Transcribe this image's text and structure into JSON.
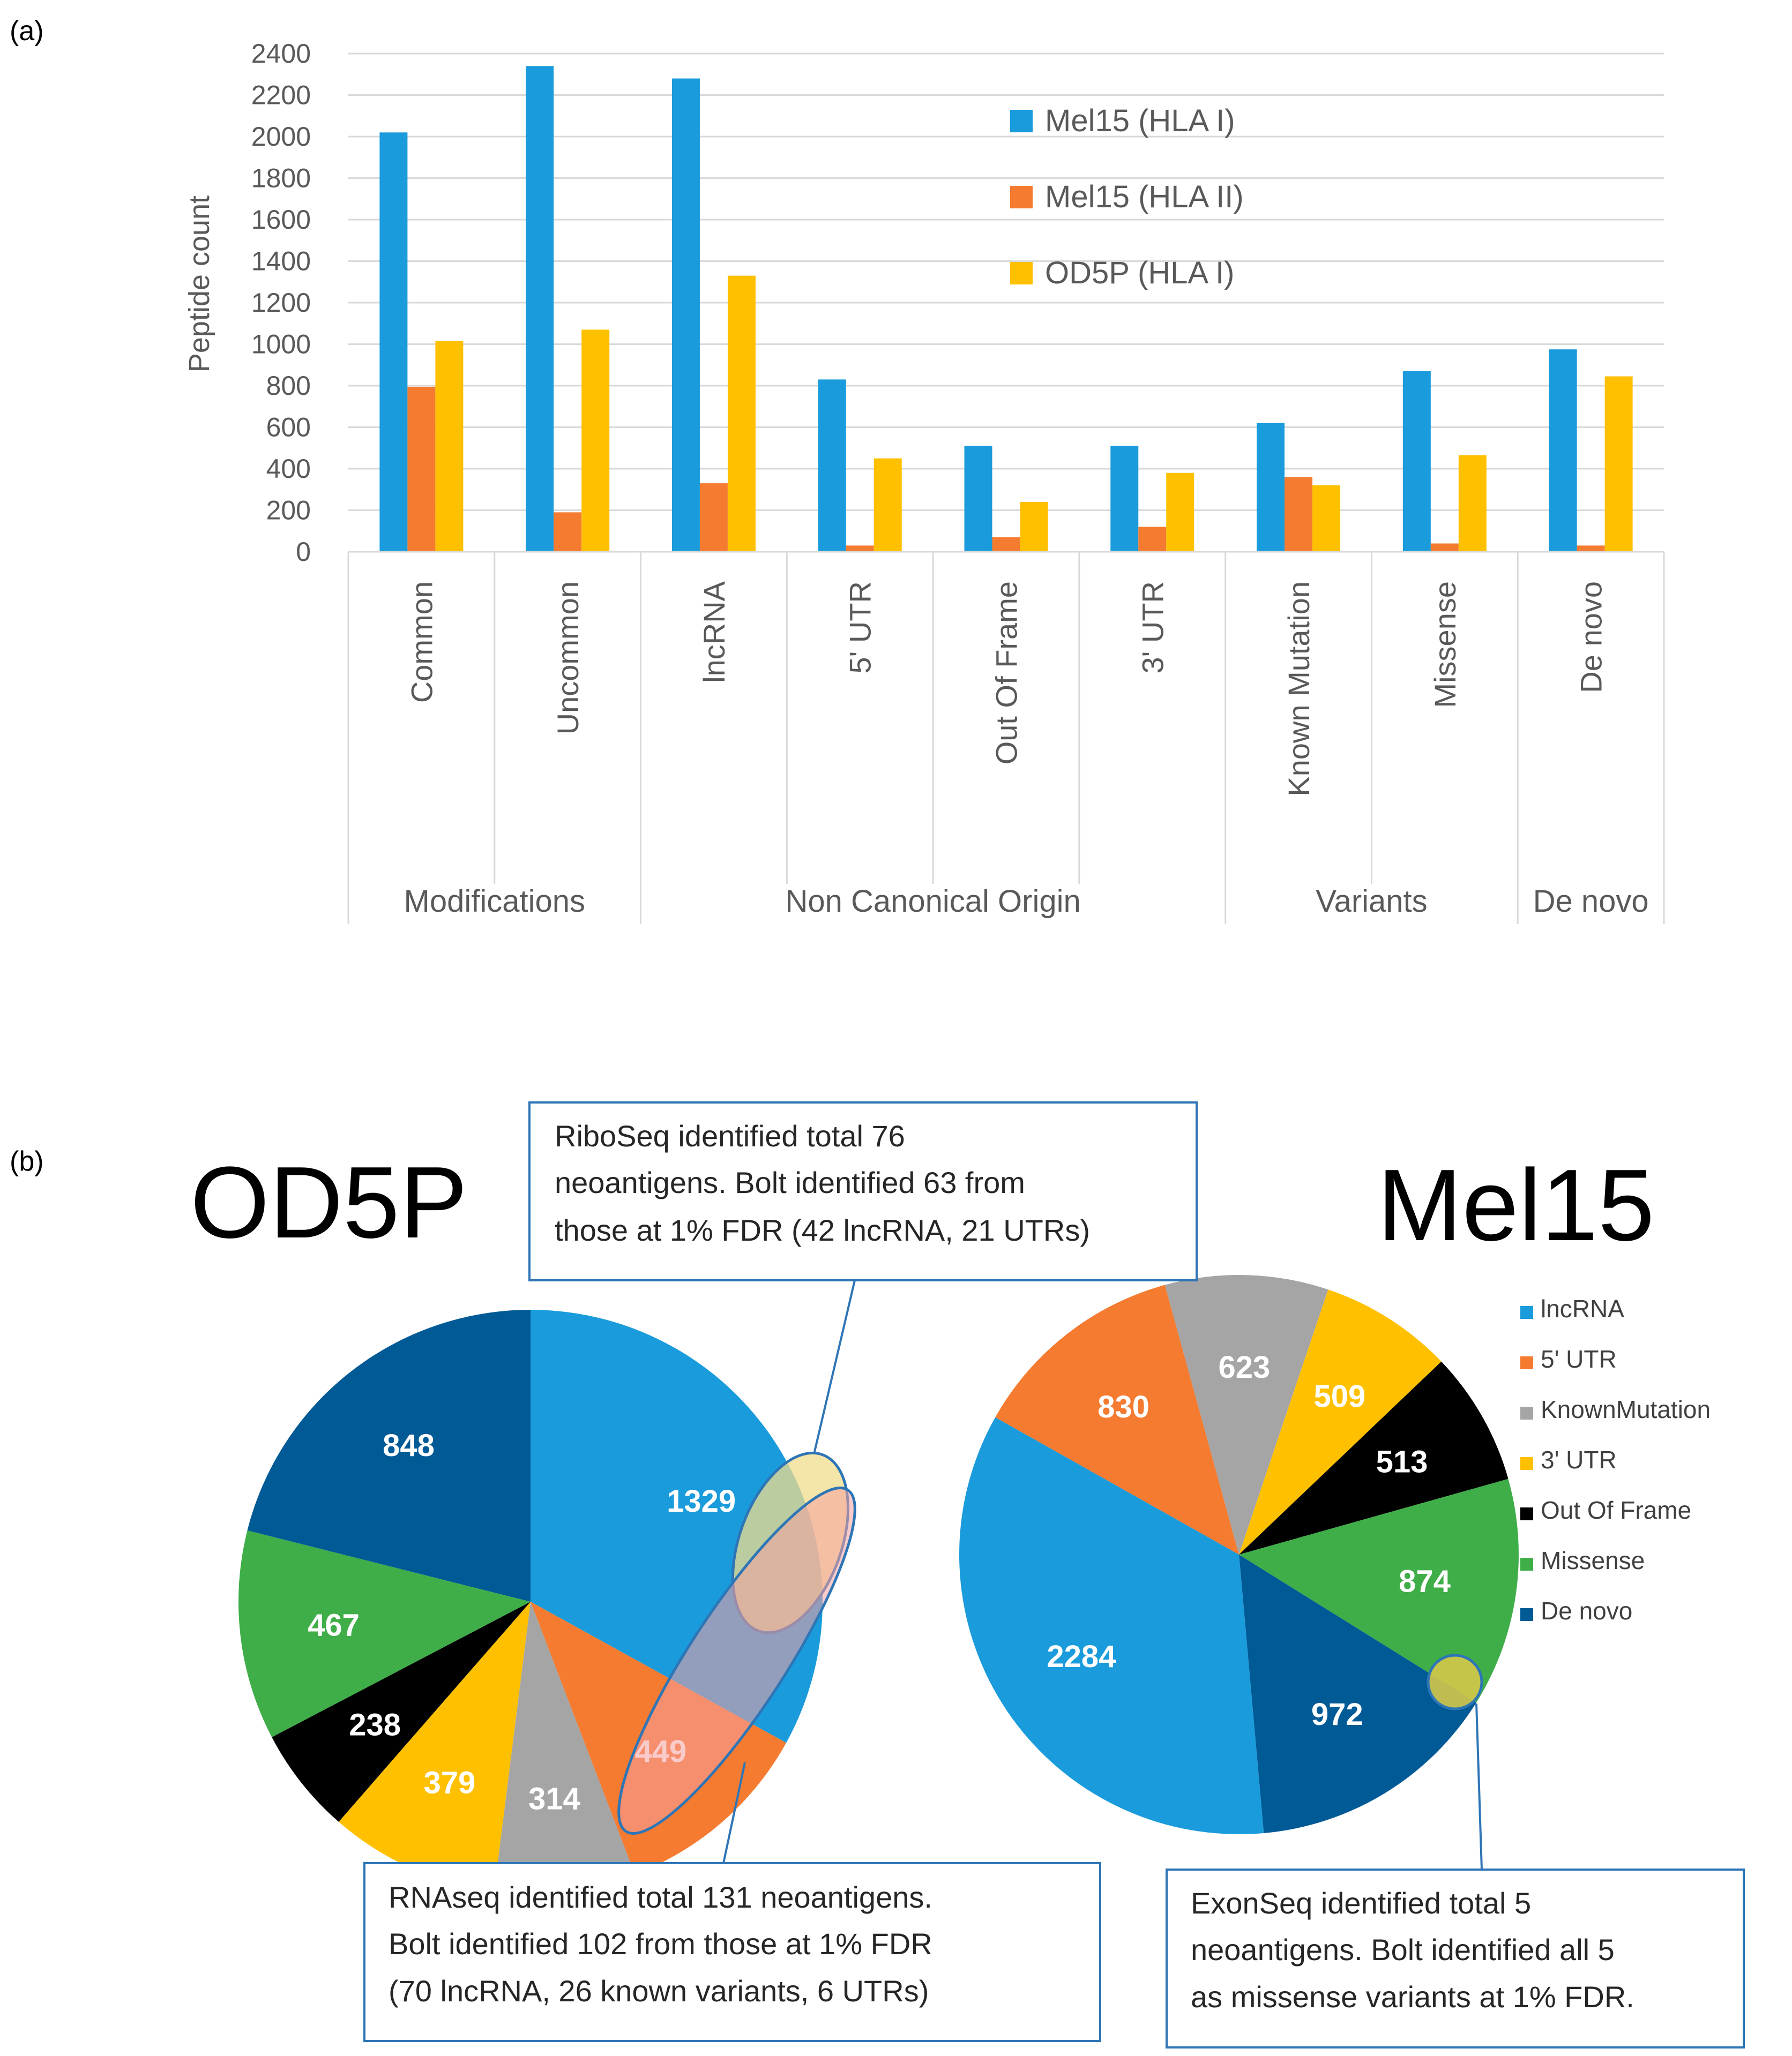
{
  "panel_labels": {
    "a": "(a)",
    "b": "(b)"
  },
  "chart_data": [
    {
      "type": "bar",
      "panel": "(a)",
      "ylabel": "Peptide count",
      "ylim": [
        0,
        2400
      ],
      "yticks": [
        0,
        200,
        400,
        600,
        800,
        1000,
        1200,
        1400,
        1600,
        1800,
        2000,
        2200,
        2400
      ],
      "grid": true,
      "legend_position": "top-right",
      "categories": [
        "Common",
        "Uncommon",
        "lncRNA",
        "5' UTR",
        "Out Of Frame",
        "3' UTR",
        "Known Mutation",
        "Missense",
        "De novo"
      ],
      "groups": [
        {
          "label": "Modifications",
          "count": 2
        },
        {
          "label": "Non Canonical Origin",
          "count": 4
        },
        {
          "label": "Variants",
          "count": 2
        },
        {
          "label": "De novo",
          "count": 1
        }
      ],
      "series": [
        {
          "name": "Mel15 (HLA I)",
          "color": "#1a9bdb",
          "values": [
            2020,
            2340,
            2280,
            830,
            510,
            510,
            620,
            870,
            975
          ]
        },
        {
          "name": "Mel15 (HLA II)",
          "color": "#f47b30",
          "values": [
            795,
            190,
            330,
            30,
            70,
            120,
            360,
            40,
            30
          ]
        },
        {
          "name": "OD5P (HLA I)",
          "color": "#ffc000",
          "values": [
            1015,
            1070,
            1330,
            450,
            240,
            380,
            320,
            465,
            845
          ]
        }
      ]
    },
    {
      "type": "pie",
      "panel": "(b)",
      "title": "OD5P",
      "slices": [
        {
          "label": "lncRNA",
          "value": 1329,
          "color": "#1a9bdb"
        },
        {
          "label": "5' UTR",
          "value": 449,
          "color": "#f47b30"
        },
        {
          "label": "Known Mutation",
          "value": 314,
          "color": "#a5a5a5"
        },
        {
          "label": "3' UTR",
          "value": 379,
          "color": "#ffc000"
        },
        {
          "label": "Out Of Frame",
          "value": 238,
          "color": "#000000"
        },
        {
          "label": "Missense",
          "value": 467,
          "color": "#3fae49"
        },
        {
          "label": "De novo",
          "value": 848,
          "color": "#005a96"
        }
      ]
    },
    {
      "type": "pie",
      "panel": "(b)",
      "title": "Mel15",
      "slices": [
        {
          "label": "5' UTR",
          "value": 830,
          "color": "#f47b30"
        },
        {
          "label": "Known Mutation",
          "value": 623,
          "color": "#a5a5a5"
        },
        {
          "label": "3' UTR",
          "value": 509,
          "color": "#ffc000"
        },
        {
          "label": "Out Of Frame",
          "value": 513,
          "color": "#000000"
        },
        {
          "label": "Missense",
          "value": 874,
          "color": "#3fae49"
        },
        {
          "label": "De novo",
          "value": 972,
          "color": "#005a96"
        },
        {
          "label": "lncRNA",
          "value": 2284,
          "color": "#1a9bdb"
        }
      ]
    }
  ],
  "pie_legend": [
    {
      "label": "lncRNA",
      "color": "#1a9bdb"
    },
    {
      "label": "5' UTR",
      "color": "#f47b30"
    },
    {
      "label": "KnownMutation",
      "color": "#a5a5a5"
    },
    {
      "label": "3' UTR",
      "color": "#ffc000"
    },
    {
      "label": "Out Of Frame",
      "color": "#000000"
    },
    {
      "label": "Missense",
      "color": "#3fae49"
    },
    {
      "label": "De novo",
      "color": "#005a96"
    }
  ],
  "callouts": {
    "riboseq": [
      "RiboSeq identified total 76",
      "neoantigens. Bolt identified 63 from",
      "those at 1% FDR (42 lncRNA, 21 UTRs)"
    ],
    "rnaseq": [
      "RNAseq identified total 131 neoantigens.",
      "Bolt identified 102 from those at 1% FDR",
      "(70 lncRNA, 26 known variants, 6 UTRs)"
    ],
    "exonseq": [
      "ExonSeq identified total 5",
      "neoantigens. Bolt identified all 5",
      "as missense variants at 1% FDR."
    ]
  }
}
